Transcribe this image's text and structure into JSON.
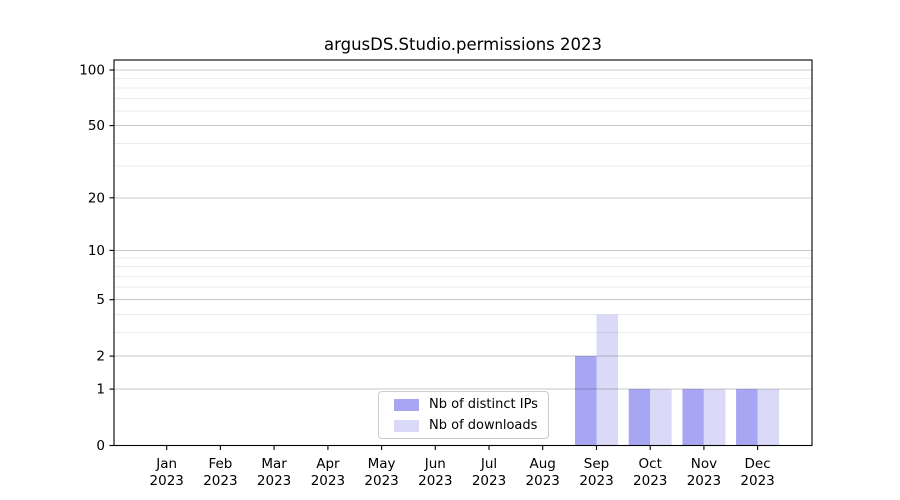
{
  "chart_data": {
    "type": "bar",
    "title": "argusDS.Studio.permissions 2023",
    "categories": [
      "Jan",
      "Feb",
      "Mar",
      "Apr",
      "May",
      "Jun",
      "Jul",
      "Aug",
      "Sep",
      "Oct",
      "Nov",
      "Dec"
    ],
    "category_year": "2023",
    "series": [
      {
        "name": "Nb of distinct IPs",
        "color": "#a6a6f2",
        "values": [
          0,
          0,
          0,
          0,
          0,
          0,
          0,
          0,
          2,
          1,
          1,
          1
        ]
      },
      {
        "name": "Nb of downloads",
        "color": "#dadaf8",
        "values": [
          0,
          0,
          0,
          0,
          0,
          0,
          0,
          0,
          4,
          1,
          1,
          1
        ]
      }
    ],
    "y_scale": "log1p",
    "y_major_ticks": [
      0,
      1,
      2,
      5,
      10,
      20,
      50,
      100
    ],
    "y_minor_gridlines": [
      3,
      4,
      6,
      7,
      8,
      9,
      30,
      40,
      60,
      70,
      80,
      90
    ],
    "ylim": [
      0,
      100
    ],
    "grid": "horizontal",
    "legend_position": "lower center",
    "colors": {
      "spine": "#000000",
      "major_grid": "rgba(0,0,0,0.22)",
      "minor_grid": "rgba(0,0,0,0.08)",
      "tick_text": "#000000"
    }
  }
}
